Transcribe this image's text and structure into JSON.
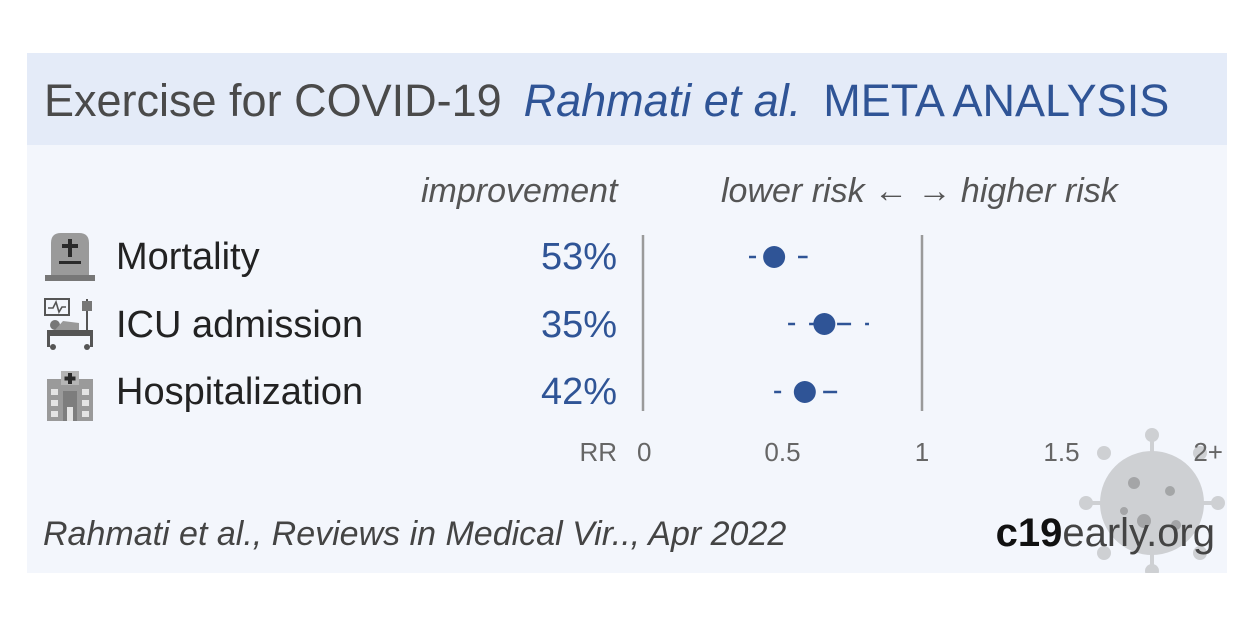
{
  "header": {
    "topic": "Exercise for COVID-19",
    "authors": "Rahmati et al.",
    "analysis_type": "META ANALYSIS"
  },
  "columns": {
    "improvement": "improvement",
    "direction": "lower risk ← → higher risk"
  },
  "colors": {
    "accent": "#2f5496",
    "header_bg": "#e4ebf8",
    "card_bg": "#f3f6fc"
  },
  "chart_data": {
    "type": "forest",
    "title": "",
    "xlabel": "RR",
    "xlim": [
      0,
      2
    ],
    "reference_lines": [
      0,
      1
    ],
    "tick_labels": [
      "0",
      "0.5",
      "1",
      "1.5",
      "2+"
    ],
    "tick_values": [
      0,
      0.5,
      1,
      1.5,
      2
    ],
    "rows": [
      {
        "label": "Mortality",
        "improvement": "53%",
        "icon": "tombstone-icon",
        "rr": 0.47,
        "ci_low": 0.38,
        "ci_high": 0.59
      },
      {
        "label": "ICU admission",
        "improvement": "35%",
        "icon": "icu-bed-icon",
        "rr": 0.65,
        "ci_low": 0.52,
        "ci_high": 0.81
      },
      {
        "label": "Hospitalization",
        "improvement": "42%",
        "icon": "hospital-icon",
        "rr": 0.58,
        "ci_low": 0.47,
        "ci_high": 0.73
      }
    ]
  },
  "footer": {
    "citation": "Rahmati et al., Reviews in Medical Vir.., Apr 2022",
    "brand_bold": "c19",
    "brand_rest": "early.org"
  }
}
